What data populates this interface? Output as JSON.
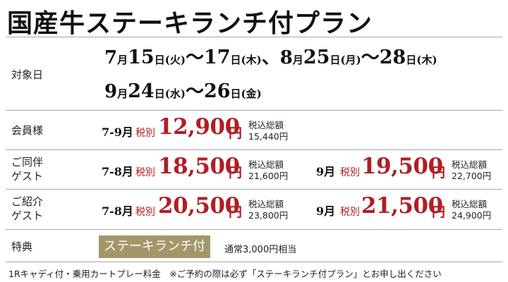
{
  "title": "国産牛ステーキランチ付プラン",
  "rows": {
    "dates_label": "対象日",
    "member_label": "会員様",
    "companion_label": [
      "ご同伴",
      "ゲスト"
    ],
    "referral_label": [
      "ご紹介",
      "ゲスト"
    ],
    "special_label": "特典"
  },
  "dates": {
    "line1": [
      {
        "m": "7",
        "d": "15",
        "w": "火"
      },
      {
        "m": "7",
        "d": "17",
        "w": "木"
      },
      {
        "m": "8",
        "d": "25",
        "w": "月"
      },
      {
        "m": "8",
        "d": "28",
        "w": "木"
      }
    ],
    "line2": [
      {
        "m": "9",
        "d": "24",
        "w": "水"
      },
      {
        "m": "9",
        "d": "26",
        "w": "金"
      }
    ],
    "month_char": "月",
    "day_char": "日",
    "tilde": "～",
    "comma": "、"
  },
  "prices": {
    "pre_tax_label": "税別",
    "tax_label": "税込総額",
    "yen": "円",
    "member": {
      "period": "7-9月",
      "amount": "12,900",
      "tax_incl": "15,440円"
    },
    "companion_a": {
      "period": "7-8月",
      "amount": "18,500",
      "tax_incl": "21,600円"
    },
    "companion_b": {
      "period": "9月",
      "amount": "19,500",
      "tax_incl": "22,700円"
    },
    "referral_a": {
      "period": "7-8月",
      "amount": "20,500",
      "tax_incl": "23,800円"
    },
    "referral_b": {
      "period": "9月",
      "amount": "21,500",
      "tax_incl": "24,900円"
    }
  },
  "special": {
    "badge": "ステーキランチ付",
    "note": "通常3,000円相当"
  },
  "footer": "1Rキャディ付・乗用カートプレー料金　※ご予約の際は必ず「ステーキランチ付プラン」とお申し出ください",
  "colors": {
    "price_red": "#b01e23",
    "badge_gold": "#a39768",
    "rule_gray": "#a7a7a7"
  }
}
